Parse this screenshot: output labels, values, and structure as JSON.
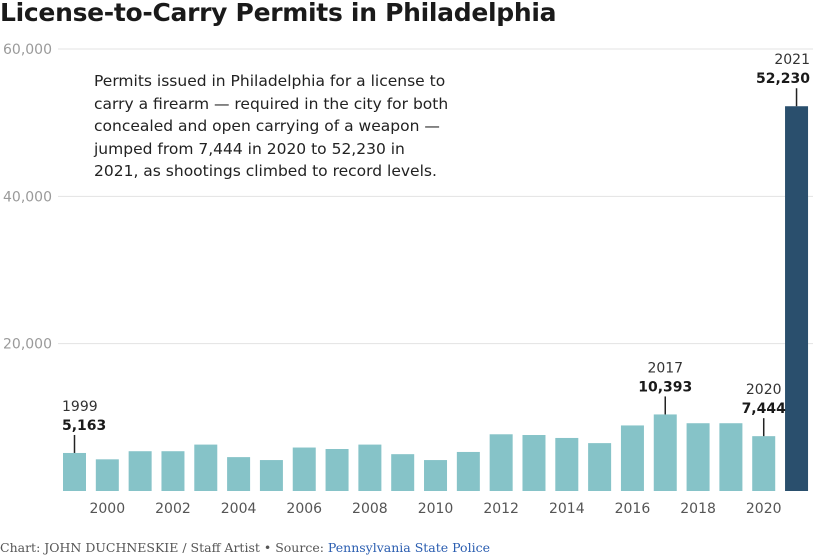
{
  "title": "License-to-Carry Permits in Philadelphia",
  "annotation": "Permits issued in Philadelphia for a license to carry a firearm — required in the city for both concealed and open carrying of a weapon — jumped from 7,444 in 2020 to 52,230 in 2021, as shootings climbed to record levels.",
  "credit": {
    "text": "Chart: JOHN DUCHNESKIE / Staff Artist • Source: ",
    "source": "Pennsylvania State Police"
  },
  "colors": {
    "bar": "#86c3c8",
    "highlight": "#2a4f6d",
    "grid": "#e3e3e3",
    "axis_text": "#9a9a9a",
    "label_text": "#333333"
  },
  "chart_data": {
    "type": "bar",
    "title": "License-to-Carry Permits in Philadelphia",
    "xlabel": "",
    "ylabel": "",
    "ylim": [
      0,
      60000
    ],
    "y_ticks": [
      20000,
      40000,
      60000
    ],
    "y_tick_labels": [
      "20,000",
      "40,000",
      "60,000"
    ],
    "x_tick_labels": [
      "2000",
      "2002",
      "2004",
      "2006",
      "2008",
      "2010",
      "2012",
      "2014",
      "2016",
      "2018",
      "2020"
    ],
    "categories": [
      1999,
      2000,
      2001,
      2002,
      2003,
      2004,
      2005,
      2006,
      2007,
      2008,
      2009,
      2010,
      2011,
      2012,
      2013,
      2014,
      2015,
      2016,
      2017,
      2018,
      2019,
      2020,
      2021
    ],
    "values": [
      5163,
      4300,
      5400,
      5400,
      6300,
      4600,
      4200,
      5900,
      5700,
      6300,
      5000,
      4200,
      5300,
      7700,
      7600,
      7200,
      6500,
      8900,
      10393,
      9200,
      9200,
      7444,
      52230
    ],
    "highlight": [
      2021
    ],
    "grid": true,
    "annotations": [
      {
        "year": 1999,
        "year_label": "1999",
        "value_label": "5,163"
      },
      {
        "year": 2017,
        "year_label": "2017",
        "value_label": "10,393"
      },
      {
        "year": 2020,
        "year_label": "2020",
        "value_label": "7,444"
      },
      {
        "year": 2021,
        "year_label": "2021",
        "value_label": "52,230"
      }
    ]
  }
}
